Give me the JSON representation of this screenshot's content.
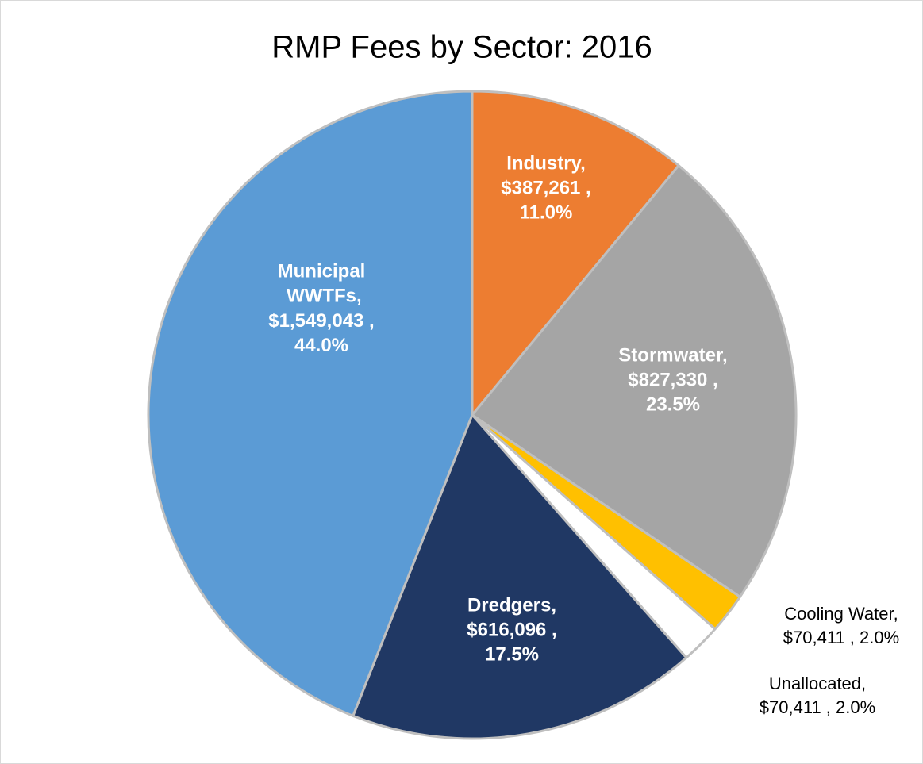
{
  "chart_data": {
    "type": "pie",
    "title": "RMP Fees by Sector: 2016",
    "categories": [
      "Industry,",
      "Stormwater,",
      "Cooling Water,",
      "Unallocated,",
      "Dredgers,",
      "Municipal WWTFs,"
    ],
    "values": [
      387261,
      827330,
      70411,
      70411,
      616096,
      1549043
    ],
    "value_labels": [
      "$387,261 ,",
      "$827,330 ,",
      "$70,411 ,",
      "$70,411 ,",
      "$616,096 ,",
      "$1,549,043 ,"
    ],
    "percent_labels": [
      "11.0%",
      "23.5%",
      "2.0%",
      "2.0%",
      "17.5%",
      "44.0%"
    ],
    "colors": [
      "#ed7d31",
      "#a5a5a5",
      "#ffc000",
      "#ffffff",
      "#203864",
      "#5b9bd5"
    ]
  }
}
